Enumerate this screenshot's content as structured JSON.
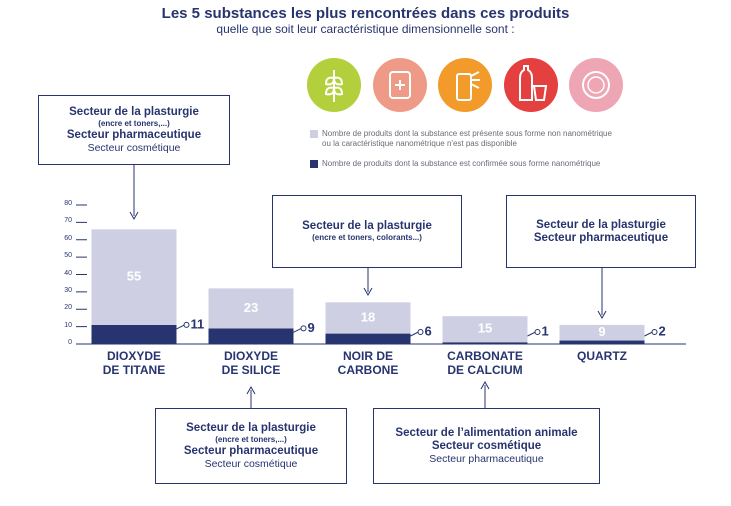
{
  "chart_data": {
    "type": "stacked_bar",
    "title": "Les 5 substances les plus rencontrées dans ces produits",
    "subtitle": "quelle que soit leur caractéristique dimensionnelle sont :",
    "categories": [
      "DIOXYDE\nDE TITANE",
      "DIOXYDE\nDE SILICE",
      "NOIR DE\nCARBONE",
      "CARBONATE\nDE CALCIUM",
      "QUARTZ"
    ],
    "series": [
      {
        "name": "Nombre de produits dont la substance est confirmée sous forme nanométrique",
        "color": "#27346f",
        "values": [
          11,
          9,
          6,
          1,
          2
        ]
      },
      {
        "name": "Nombre de produits dont la substance est présente sous forme non nanométrique ou la caractéristique nanométrique n'est pas disponible",
        "color": "#cfcfe4",
        "values": [
          55,
          23,
          18,
          15,
          9
        ]
      }
    ],
    "ylim": [
      0,
      80
    ],
    "yticks": [
      0,
      10,
      20,
      30,
      40,
      50,
      60,
      70,
      80
    ],
    "annotations": [
      {
        "lines": [
          {
            "text": "Secteur de la plasturgie",
            "style": "bold"
          },
          {
            "text": "(encre et toners,...)",
            "style": "small"
          },
          {
            "text": "Secteur pharmaceutique",
            "style": "bold"
          },
          {
            "text": "Secteur cosmétique",
            "style": "regular"
          }
        ]
      },
      {
        "lines": [
          {
            "text": "Secteur de la plasturgie",
            "style": "bold"
          },
          {
            "text": "(encre et toners,...)",
            "style": "small"
          },
          {
            "text": "Secteur pharmaceutique",
            "style": "bold"
          },
          {
            "text": "Secteur cosmétique",
            "style": "regular"
          }
        ]
      },
      {
        "lines": [
          {
            "text": "Secteur de la plasturgie",
            "style": "bold"
          },
          {
            "text": "(encre et toners, colorants...)",
            "style": "small"
          }
        ]
      },
      {
        "lines": [
          {
            "text": "Secteur de l’alimentation animale",
            "style": "bold"
          },
          {
            "text": "Secteur cosmétique",
            "style": "bold"
          },
          {
            "text": "Secteur pharmaceutique",
            "style": "regular"
          }
        ]
      },
      {
        "lines": [
          {
            "text": "Secteur de la plasturgie",
            "style": "bold"
          },
          {
            "text": "Secteur pharmaceutique",
            "style": "bold"
          }
        ]
      }
    ]
  }
}
